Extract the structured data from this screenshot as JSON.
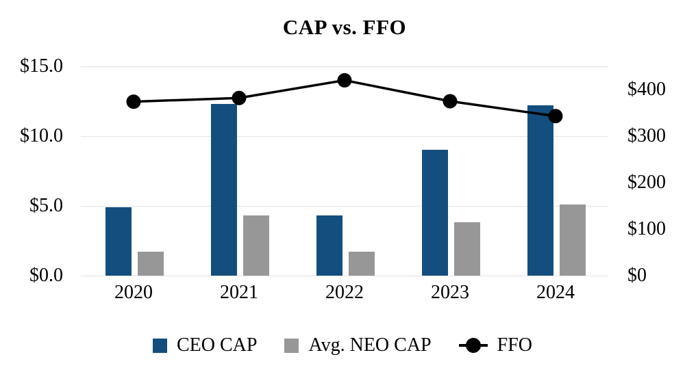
{
  "chart_data": {
    "type": "combo",
    "title": "CAP vs. FFO",
    "categories": [
      "2020",
      "2021",
      "2022",
      "2023",
      "2024"
    ],
    "series": [
      {
        "name": "CEO CAP",
        "type": "bar",
        "axis": "left",
        "color": "#134E7E",
        "values": [
          4.9,
          12.3,
          4.3,
          9.0,
          12.2
        ]
      },
      {
        "name": "Avg. NEO CAP",
        "type": "bar",
        "axis": "left",
        "color": "#979797",
        "values": [
          1.7,
          4.3,
          1.7,
          3.8,
          5.1
        ]
      },
      {
        "name": "FFO",
        "type": "line",
        "axis": "right",
        "color": "#000000",
        "values": [
          374,
          382,
          420,
          375,
          343
        ]
      }
    ],
    "left_axis": {
      "max": 15,
      "ticks": [
        {
          "label": "$15.0",
          "value": 15
        },
        {
          "label": "$10.0",
          "value": 10
        },
        {
          "label": "$5.0",
          "value": 5
        },
        {
          "label": "$0.0",
          "value": 0
        }
      ]
    },
    "right_axis": {
      "max": 450,
      "ticks": [
        {
          "label": "$400",
          "value": 400
        },
        {
          "label": "$300",
          "value": 300
        },
        {
          "label": "$200",
          "value": 200
        },
        {
          "label": "$100",
          "value": 100
        },
        {
          "label": "$0",
          "value": 0
        }
      ]
    },
    "layout": {
      "grid": true,
      "legend_position": "bottom",
      "marker": "filled-circle"
    },
    "colors": {
      "gridline": "#e3e3e3",
      "text": "#000000"
    }
  }
}
